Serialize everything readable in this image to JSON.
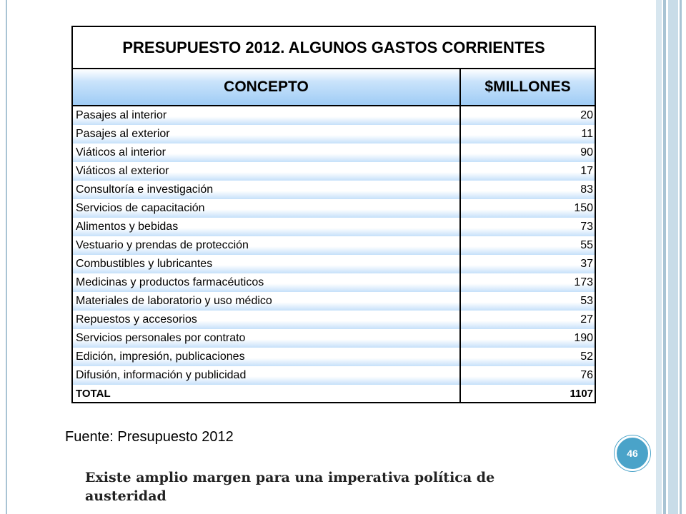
{
  "table": {
    "title": "PRESUPUESTO 2012. ALGUNOS GASTOS CORRIENTES",
    "headers": {
      "concept": "CONCEPTO",
      "amount": "$MILLONES"
    },
    "rows": [
      {
        "concept": "Pasajes al interior",
        "amount": "20"
      },
      {
        "concept": "Pasajes al exterior",
        "amount": "11"
      },
      {
        "concept": "Viáticos al interior",
        "amount": "90"
      },
      {
        "concept": "Viáticos al exterior",
        "amount": "17"
      },
      {
        "concept": "Consultoría e investigación",
        "amount": "83"
      },
      {
        "concept": "Servicios de capacitación",
        "amount": "150"
      },
      {
        "concept": "Alimentos y bebidas",
        "amount": "73"
      },
      {
        "concept": "Vestuario y prendas de protección",
        "amount": "55"
      },
      {
        "concept": "Combustibles y lubricantes",
        "amount": "37"
      },
      {
        "concept": "Medicinas y productos farmacéuticos",
        "amount": "173"
      },
      {
        "concept": "Materiales de laboratorio y uso médico",
        "amount": "53"
      },
      {
        "concept": "Repuestos y accesorios",
        "amount": "27"
      },
      {
        "concept": "Servicios personales por contrato",
        "amount": "190"
      },
      {
        "concept": "Edición, impresión, publicaciones",
        "amount": "52"
      },
      {
        "concept": "Difusión, información y publicidad",
        "amount": "76"
      }
    ],
    "total": {
      "label": "TOTAL",
      "amount": "1107"
    }
  },
  "source": "Fuente: Presupuesto 2012",
  "page_number": "46",
  "conclusion": "Existe amplio margen para una imperativa política de austeridad",
  "colors": {
    "header_blue": "#9fccf5",
    "badge": "#4aa3c9",
    "frame": "#a9c4d4"
  }
}
